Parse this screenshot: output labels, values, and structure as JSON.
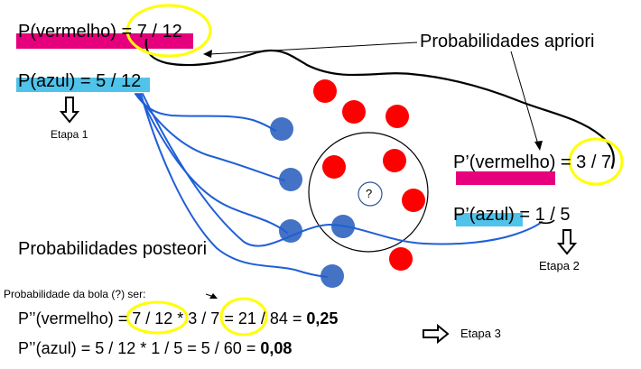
{
  "colors": {
    "magenta_highlight": "#e6007e",
    "cyan_highlight": "#4fc3ea",
    "red_ball": "#ff0000",
    "blue_ball": "#4472c4",
    "yellow_circle": "#ffff00",
    "blue_line": "#1f5fd6"
  },
  "prior": {
    "red_label": "P(vermelho) = ",
    "red_value": "7 / 12",
    "blue_label": "P(azul) = ",
    "blue_value": "5 / 12",
    "annotation": "Probabilidades apriori",
    "step1": "Etapa 1"
  },
  "conditional": {
    "red_label": "P’(vermelho) = ",
    "red_value": "3 / 7",
    "blue_label": "P’(azul) = ",
    "blue_value": "1 / 5",
    "step2": "Etapa 2"
  },
  "posterior": {
    "title": "Probabilidades posteori",
    "subtitle": "Probabilidade da bola (?) ser:",
    "red_label": "P’’(vermelho) = ",
    "red_f1": "7 / 12",
    "times": " * ",
    "red_f2": "3 / 7",
    "red_rest": " = 21 / 84 = ",
    "red_result": "0,25",
    "blue_expr": "P’’(azul) = 5 / 12 * 1 / 5 = 5 / 60 = ",
    "blue_result": "0,08",
    "step3": "Etapa 3"
  },
  "unknown_ball_label": "?"
}
